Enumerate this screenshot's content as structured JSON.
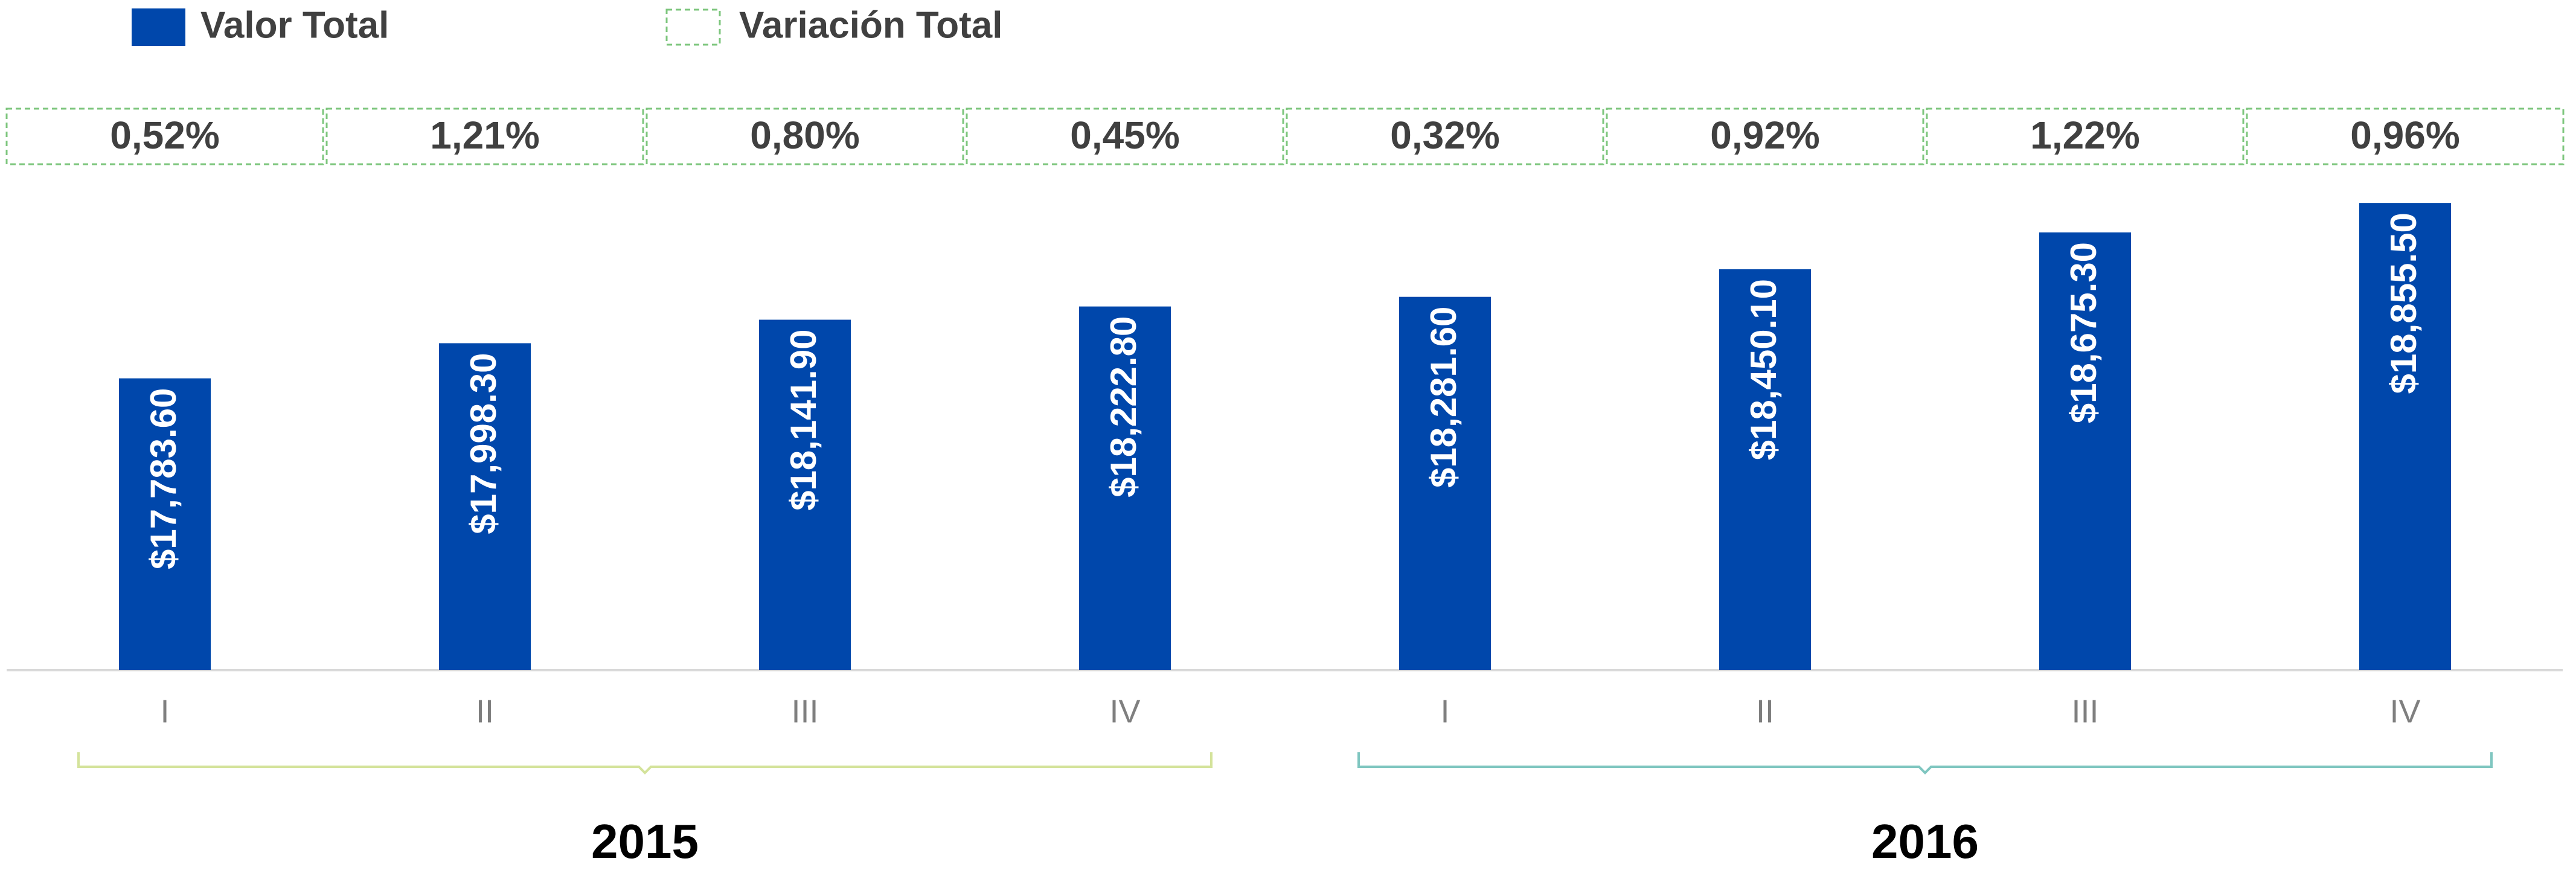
{
  "chart_data": {
    "type": "bar",
    "categories": [
      "I",
      "II",
      "III",
      "IV",
      "I",
      "II",
      "III",
      "IV"
    ],
    "groups": [
      "2015",
      "2016"
    ],
    "series": [
      {
        "name": "Valor Total",
        "color": "#0047ab",
        "values": [
          17783.6,
          17998.3,
          18141.9,
          18222.8,
          18281.6,
          18450.1,
          18675.3,
          18855.5
        ],
        "value_labels": [
          "$17,783.60",
          "$17,998.30",
          "$18,141.90",
          "$18,222.80",
          "$18,281.60",
          "$18,450.10",
          "$18,675.30",
          "$18,855.50"
        ]
      },
      {
        "name": "Variación Total",
        "color": "#7dc67d",
        "values": [
          0.52,
          1.21,
          0.8,
          0.45,
          0.32,
          0.92,
          1.22,
          0.96
        ],
        "value_labels": [
          "0,52%",
          "1,21%",
          "0,80%",
          "0,45%",
          "0,32%",
          "0,92%",
          "1,22%",
          "0,96%"
        ]
      }
    ],
    "ylim": [
      16000,
      19000
    ]
  }
}
